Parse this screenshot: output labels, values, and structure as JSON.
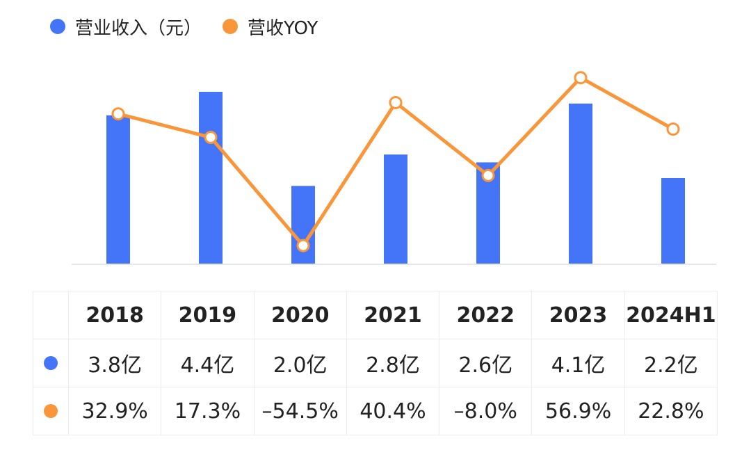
{
  "colors": {
    "revenue": "#4474f7",
    "yoy": "#f9963a",
    "axis": "#e2e6ee"
  },
  "legend": {
    "revenue_label": "营业收入（元）",
    "yoy_label": "营收YOY"
  },
  "chart_data": {
    "type": "bar+line",
    "categories": [
      "2018",
      "2019",
      "2020",
      "2021",
      "2022",
      "2023",
      "2024H1"
    ],
    "series": [
      {
        "name": "营业收入（元）",
        "type": "bar",
        "unit": "亿",
        "values": [
          3.8,
          4.4,
          2.0,
          2.8,
          2.6,
          4.1,
          2.2
        ]
      },
      {
        "name": "营收YOY",
        "type": "line",
        "unit": "%",
        "values": [
          32.9,
          17.3,
          -54.5,
          40.4,
          -8.0,
          56.9,
          22.8
        ]
      }
    ],
    "bar_ylim": [
      0,
      4.4
    ],
    "line_ylim": [
      -60,
      60
    ],
    "grid": false,
    "legend_position": "top-left"
  },
  "table": {
    "headers": [
      "2018",
      "2019",
      "2020",
      "2021",
      "2022",
      "2023",
      "2024H1"
    ],
    "revenue_row": [
      "3.8亿",
      "4.4亿",
      "2.0亿",
      "2.8亿",
      "2.6亿",
      "4.1亿",
      "2.2亿"
    ],
    "yoy_row": [
      "32.9%",
      "17.3%",
      "–54.5%",
      "40.4%",
      "–8.0%",
      "56.9%",
      "22.8%"
    ]
  }
}
